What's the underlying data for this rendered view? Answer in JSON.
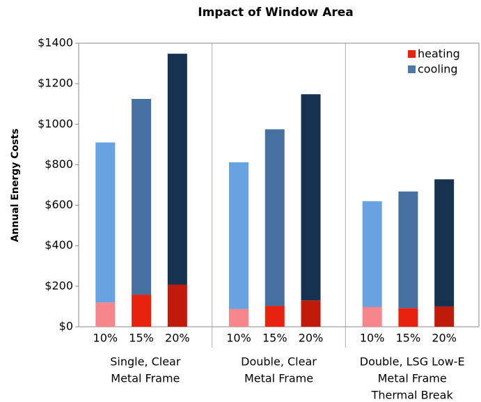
{
  "chart_data": {
    "type": "bar",
    "stacked": true,
    "title": "Impact of Window Area",
    "y_label": "Annual Energy Costs",
    "categories": [
      "10%",
      "15%",
      "20%",
      "10%",
      "15%",
      "20%",
      "10%",
      "15%",
      "20%"
    ],
    "groups": [
      [
        "Single, Clear",
        "Metal Frame"
      ],
      [
        "Double, Clear",
        "Metal Frame"
      ],
      [
        "Double, LSG Low-E",
        "Metal Frame",
        "Thermal Break"
      ]
    ],
    "series": [
      {
        "name": "heating",
        "color": "#e8220e",
        "shades": [
          "#f7868c",
          "#e8220e",
          "#c01a0a"
        ],
        "values": [
          120,
          158,
          208,
          88,
          103,
          130,
          98,
          92,
          100
        ]
      },
      {
        "name": "cooling",
        "color": "#4a78ab",
        "shades": [
          "#66a3e0",
          "#45709f",
          "#173150"
        ],
        "values": [
          790,
          967,
          1140,
          724,
          872,
          1018,
          522,
          576,
          628
        ]
      }
    ],
    "ylim": [
      0,
      1400
    ],
    "yticks": [
      {
        "value": 0,
        "label": "$0"
      },
      {
        "value": 200,
        "label": "$200"
      },
      {
        "value": 400,
        "label": "$400"
      },
      {
        "value": 600,
        "label": "$600"
      },
      {
        "value": 800,
        "label": "$800"
      },
      {
        "value": 1000,
        "label": "$1000"
      },
      {
        "value": 1200,
        "label": "$1200"
      },
      {
        "value": 1400,
        "label": "$1400"
      }
    ],
    "legend": "top-right"
  }
}
